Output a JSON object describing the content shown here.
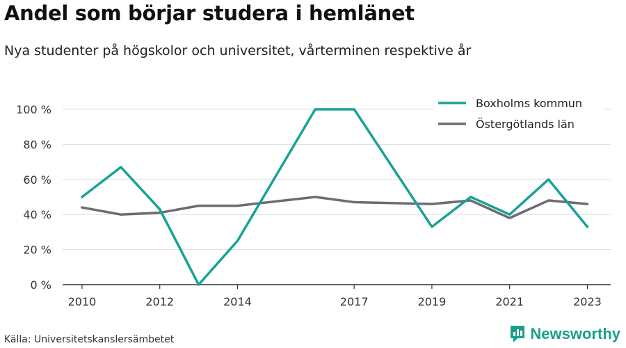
{
  "title": "Andel som börjar studera i hemlänet",
  "subtitle": "Nya studenter på högskolor och universitet, vårterminen respektive år",
  "source": "Källa: Universitetskanslersämbetet",
  "brand": "Newsworthy",
  "colors": {
    "boxholm": "#17a395",
    "ostergotland": "#6d6b73",
    "grid": "#dddddd",
    "axis": "#333333"
  },
  "chart_data": {
    "type": "line",
    "x": [
      2010,
      2011,
      2012,
      2013,
      2014,
      2016,
      2017,
      2019,
      2020,
      2021,
      2022,
      2023
    ],
    "xticks": [
      2010,
      2012,
      2014,
      2017,
      2019,
      2021,
      2023
    ],
    "xlim": [
      2009.5,
      2023.6
    ],
    "ylim": [
      0,
      100
    ],
    "yticks": [
      0,
      20,
      40,
      60,
      80,
      100
    ],
    "ytick_labels": [
      "0 %",
      "20 %",
      "40 %",
      "60 %",
      "80 %",
      "100 %"
    ],
    "grid": true,
    "legend": "top-right",
    "series": [
      {
        "name": "Boxholms kommun",
        "color_key": "boxholm",
        "values": [
          50,
          67,
          43,
          0,
          25,
          100,
          100,
          33,
          50,
          40,
          60,
          33
        ]
      },
      {
        "name": "Östergötlands län",
        "color_key": "ostergotland",
        "values": [
          44,
          40,
          41,
          45,
          45,
          50,
          47,
          46,
          48,
          38,
          48,
          46
        ]
      }
    ]
  }
}
